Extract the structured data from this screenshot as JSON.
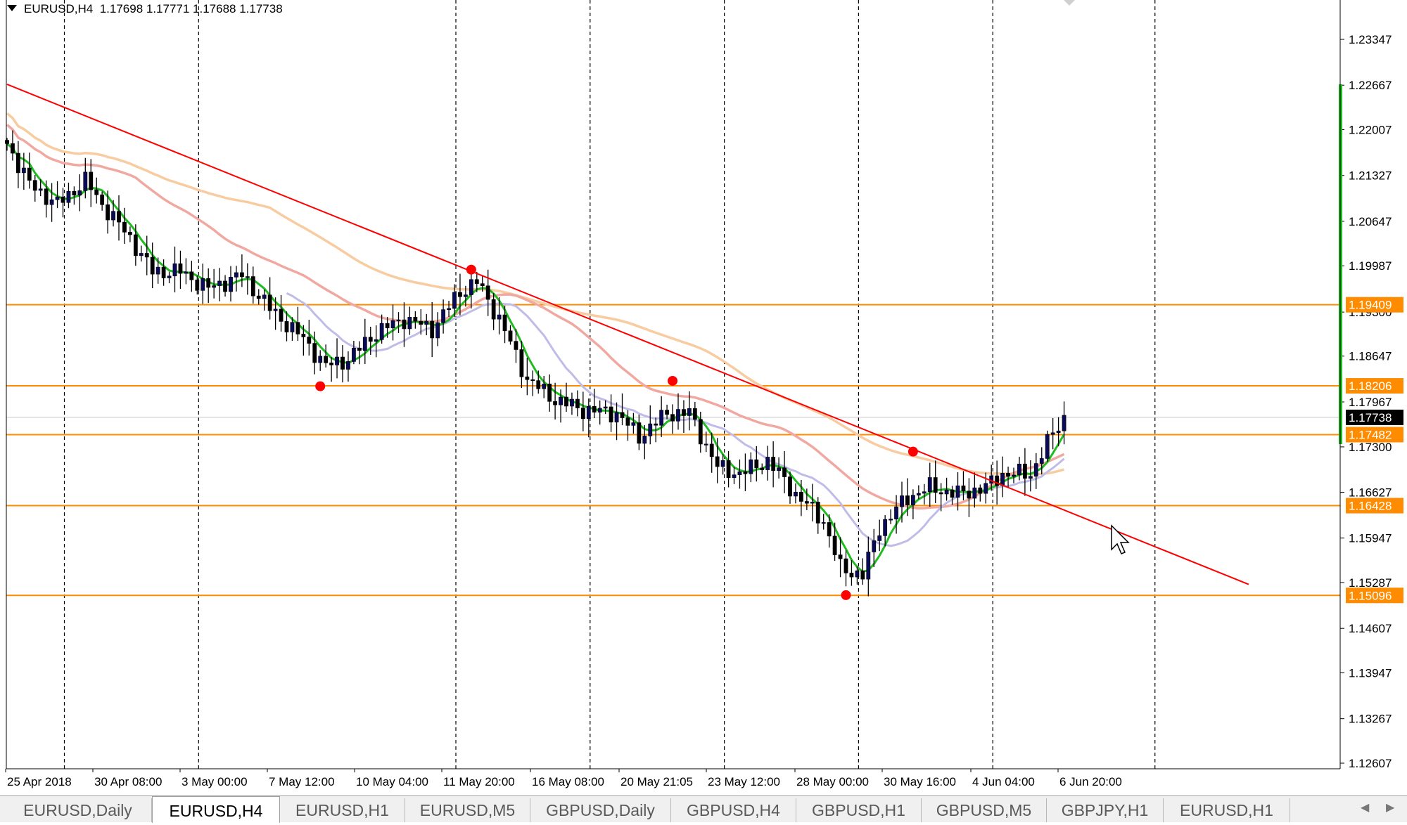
{
  "window": {
    "symbol_info": "EURUSD,H4",
    "ohlc": "1.17698 1.17771 1.17688 1.17738"
  },
  "colors": {
    "candle_up": "#0a0a5a",
    "candle_down": "#000000",
    "horizontal_levels": "#ff8c00",
    "trendline": "#ff0000",
    "ma_green": "#22bb22",
    "ma_red": "#f0a8a0",
    "ma_orange": "#f8cca0",
    "ma_lavender": "#c0bce8",
    "pivot_dots": "#ff0000",
    "current_price_label": "#000000",
    "right_bar": "#22bb22"
  },
  "chart_data": {
    "type": "candlestick",
    "symbol": "EURUSD",
    "timeframe": "H4",
    "x_labels": [
      "25 Apr 2018",
      "30 Apr 08:00",
      "3 May 00:00",
      "7 May 12:00",
      "10 May 04:00",
      "11 May 20:00",
      "16 May 08:00",
      "20 May 21:05",
      "23 May 12:00",
      "28 May 00:00",
      "30 May 16:00",
      "4 Jun 04:00",
      "6 Jun 20:00"
    ],
    "y_ticks": [
      "1.23347",
      "1.22667",
      "1.22007",
      "1.21327",
      "1.20647",
      "1.19987",
      "1.19300",
      "1.18647",
      "1.17967",
      "1.17300",
      "1.16627",
      "1.15947",
      "1.15287",
      "1.14607",
      "1.13947",
      "1.13267",
      "1.12607"
    ],
    "ylim": [
      1.12607,
      1.23347
    ],
    "horizontal_levels": [
      {
        "price": 1.19409,
        "label": "1.19409"
      },
      {
        "price": 1.18206,
        "label": "1.18206"
      },
      {
        "price": 1.17482,
        "label": "1.17482"
      },
      {
        "price": 1.16428,
        "label": "1.16428"
      },
      {
        "price": 1.15096,
        "label": "1.15096"
      }
    ],
    "current_price": {
      "price": 1.17738,
      "label": "1.17738"
    },
    "trendline": {
      "start": {
        "bar": 0,
        "price": 1.2268
      },
      "end": {
        "bar": 222,
        "price": 1.1526
      }
    },
    "pivots": [
      {
        "bar": 56,
        "price": 1.182
      },
      {
        "bar": 83,
        "price": 1.1993
      },
      {
        "bar": 119,
        "price": 1.1828
      },
      {
        "bar": 150,
        "price": 1.151
      },
      {
        "bar": 162,
        "price": 1.1723
      }
    ],
    "ohlc_bar_count": 190,
    "anchors": [
      [
        0,
        1.218
      ],
      [
        4,
        1.212
      ],
      [
        9,
        1.209
      ],
      [
        14,
        1.2125
      ],
      [
        17,
        1.209
      ],
      [
        22,
        1.204
      ],
      [
        26,
        1.199
      ],
      [
        31,
        1.199
      ],
      [
        36,
        1.1965
      ],
      [
        42,
        1.1985
      ],
      [
        47,
        1.1935
      ],
      [
        53,
        1.189
      ],
      [
        57,
        1.185
      ],
      [
        61,
        1.186
      ],
      [
        66,
        1.19
      ],
      [
        71,
        1.192
      ],
      [
        76,
        1.1905
      ],
      [
        81,
        1.196
      ],
      [
        84,
        1.1975
      ],
      [
        88,
        1.192
      ],
      [
        93,
        1.183
      ],
      [
        98,
        1.18
      ],
      [
        103,
        1.1785
      ],
      [
        109,
        1.178
      ],
      [
        113,
        1.1745
      ],
      [
        118,
        1.178
      ],
      [
        122,
        1.178
      ],
      [
        127,
        1.17
      ],
      [
        131,
        1.169
      ],
      [
        136,
        1.171
      ],
      [
        141,
        1.166
      ],
      [
        146,
        1.162
      ],
      [
        149,
        1.155
      ],
      [
        153,
        1.154
      ],
      [
        156,
        1.161
      ],
      [
        161,
        1.1655
      ],
      [
        165,
        1.167
      ],
      [
        170,
        1.166
      ],
      [
        175,
        1.167
      ],
      [
        178,
        1.169
      ],
      [
        183,
        1.169
      ],
      [
        187,
        1.175
      ],
      [
        189,
        1.1774
      ]
    ]
  },
  "tabs": [
    "EURUSD,Daily",
    "EURUSD,H4",
    "EURUSD,H1",
    "EURUSD,M5",
    "GBPUSD,Daily",
    "GBPUSD,H4",
    "GBPUSD,H1",
    "GBPUSD,M5",
    "GBPJPY,H1",
    "EURUSD,H1"
  ],
  "active_tab": "EURUSD,H4",
  "tab_nav": {
    "prev": "◀",
    "next": "▶"
  }
}
